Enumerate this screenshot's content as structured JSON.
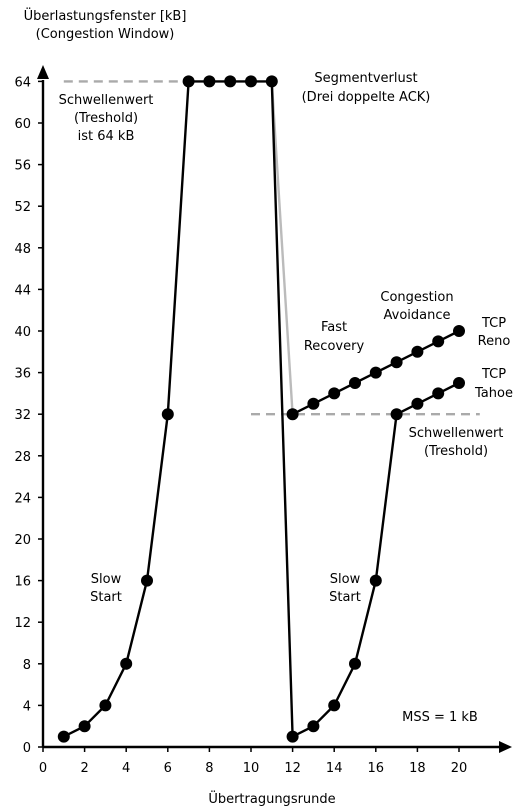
{
  "chart_data": {
    "type": "line",
    "ylabel": "Überlastungsfenster [kB]",
    "ylabel_sub": "(Congestion Window)",
    "xlabel": "Übertragungsrunde",
    "xlim": [
      0,
      21
    ],
    "ylim": [
      0,
      66
    ],
    "x_ticks": [
      0,
      2,
      4,
      6,
      8,
      10,
      12,
      14,
      16,
      18,
      20
    ],
    "y_ticks": [
      0,
      4,
      8,
      12,
      16,
      20,
      24,
      28,
      32,
      36,
      40,
      44,
      48,
      52,
      56,
      60,
      64
    ],
    "grid": false,
    "series": [
      {
        "name": "",
        "color": "#000000",
        "points": [
          [
            1,
            1
          ],
          [
            2,
            2
          ],
          [
            3,
            4
          ],
          [
            4,
            8
          ],
          [
            5,
            16
          ],
          [
            6,
            32
          ],
          [
            7,
            64
          ],
          [
            8,
            64
          ],
          [
            9,
            64
          ],
          [
            10,
            64
          ],
          [
            11,
            64
          ],
          [
            12,
            1
          ],
          [
            13,
            2
          ],
          [
            14,
            4
          ],
          [
            15,
            8
          ],
          [
            16,
            16
          ],
          [
            17,
            32
          ],
          [
            18,
            33
          ],
          [
            19,
            34
          ],
          [
            20,
            35
          ]
        ]
      },
      {
        "name": "TCP Reno",
        "color": "#000000",
        "points": [
          [
            12,
            32
          ],
          [
            13,
            33
          ],
          [
            14,
            34
          ],
          [
            15,
            35
          ],
          [
            16,
            36
          ],
          [
            17,
            37
          ],
          [
            18,
            38
          ],
          [
            19,
            39
          ],
          [
            20,
            40
          ]
        ]
      }
    ],
    "connector": {
      "color": "#bbbbbb",
      "points": [
        [
          11,
          64
        ],
        [
          12,
          32
        ]
      ]
    },
    "thresholds": [
      {
        "y": 64,
        "x_range": [
          1,
          7
        ],
        "color": "#aaaaaa"
      },
      {
        "y": 32,
        "x_range": [
          10,
          21
        ],
        "color": "#aaaaaa"
      }
    ],
    "annotations": {
      "threshold64": [
        "Schwellenwert",
        "(Treshold)",
        "ist 64 kB"
      ],
      "segment_loss": [
        "Segmentverlust",
        "(Drei doppelte ACK)"
      ],
      "congestion_avoidance": [
        "Congestion",
        "Avoidance"
      ],
      "fast_recovery": [
        "Fast",
        "Recovery"
      ],
      "tcp_reno": [
        "TCP",
        "Reno"
      ],
      "tcp_tahoe": [
        "TCP",
        "Tahoe"
      ],
      "threshold32": [
        "Schwellenwert",
        "(Treshold)"
      ],
      "slow_start_1": [
        "Slow",
        "Start"
      ],
      "slow_start_2": [
        "Slow",
        "Start"
      ],
      "mss": "MSS = 1 kB"
    }
  }
}
